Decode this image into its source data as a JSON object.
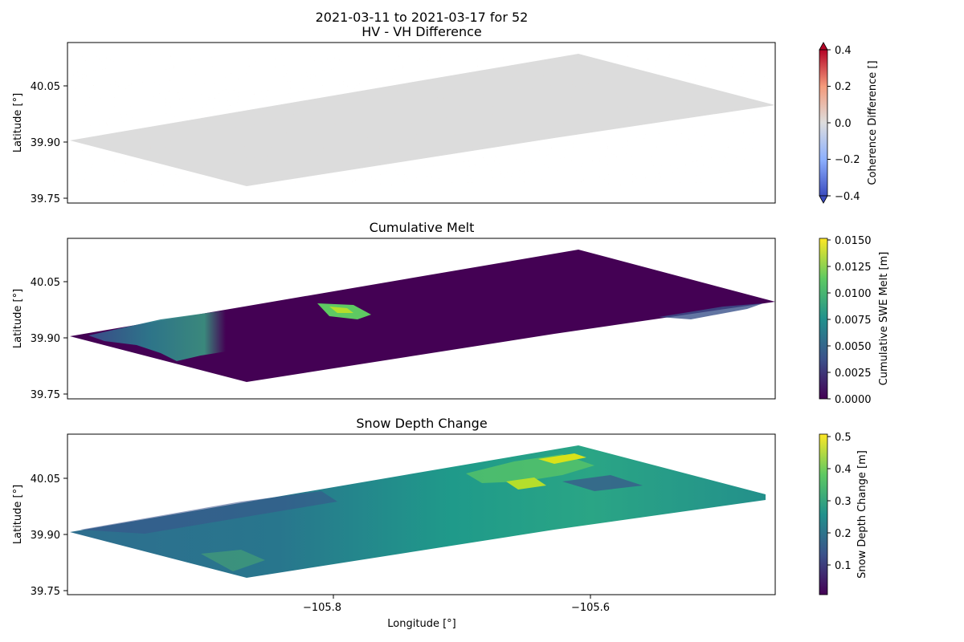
{
  "chart_data": [
    {
      "type": "heatmap",
      "title": "2021-03-11 to 2021-03-17 for 52\nHV - VH Difference",
      "title_lines": [
        "2021-03-11 to 2021-03-17 for 52",
        "HV - VH Difference"
      ],
      "ylabel": "Latitude [°]",
      "yticks": [
        "40.05",
        "39.90",
        "39.75"
      ],
      "colormap": "coolwarm",
      "colorbar": {
        "label": "Coherence Difference []",
        "range": [
          -0.4,
          0.4
        ],
        "ticks": [
          "0.4",
          "0.2",
          "0.0",
          "−0.2",
          "−0.4"
        ],
        "extend": "both",
        "colors": [
          "#3b4cc0",
          "#8db0fe",
          "#dddddd",
          "#f49a7b",
          "#b40426"
        ]
      },
      "field_summary": "near 0.0 everywhere with sparse positive speckle"
    },
    {
      "type": "heatmap",
      "title": "Cumulative Melt",
      "ylabel": "Latitude [°]",
      "yticks": [
        "40.05",
        "39.90",
        "39.75"
      ],
      "colormap": "viridis",
      "colorbar": {
        "label": "Cumulative SWE Melt [m]",
        "range": [
          0.0,
          0.015
        ],
        "ticks": [
          "0.0150",
          "0.0125",
          "0.0100",
          "0.0075",
          "0.0050",
          "0.0025",
          "0.0000"
        ],
        "colors": [
          "#440154",
          "#3b528b",
          "#21918c",
          "#5ec962",
          "#fde725"
        ]
      },
      "field_summary": "0.0000 over most of the swath; up to ~0.010 in a western band"
    },
    {
      "type": "heatmap",
      "title": "Snow Depth Change",
      "ylabel": "Latitude [°]",
      "yticks": [
        "40.05",
        "39.90",
        "39.75"
      ],
      "xlabel": "Longitude [°]",
      "xticks": [
        "−105.8",
        "−105.6"
      ],
      "colormap": "viridis",
      "colorbar": {
        "label": "Snow Depth Change [m]",
        "range": [
          0.0,
          0.5
        ],
        "ticks": [
          "0.5",
          "0.4",
          "0.3",
          "0.2",
          "0.1"
        ],
        "colors": [
          "#440154",
          "#3b528b",
          "#21918c",
          "#5ec962",
          "#fde725"
        ]
      },
      "field_summary": "mostly ~0.2–0.3 m, highs ~0.5 m in northeast ridges"
    }
  ]
}
